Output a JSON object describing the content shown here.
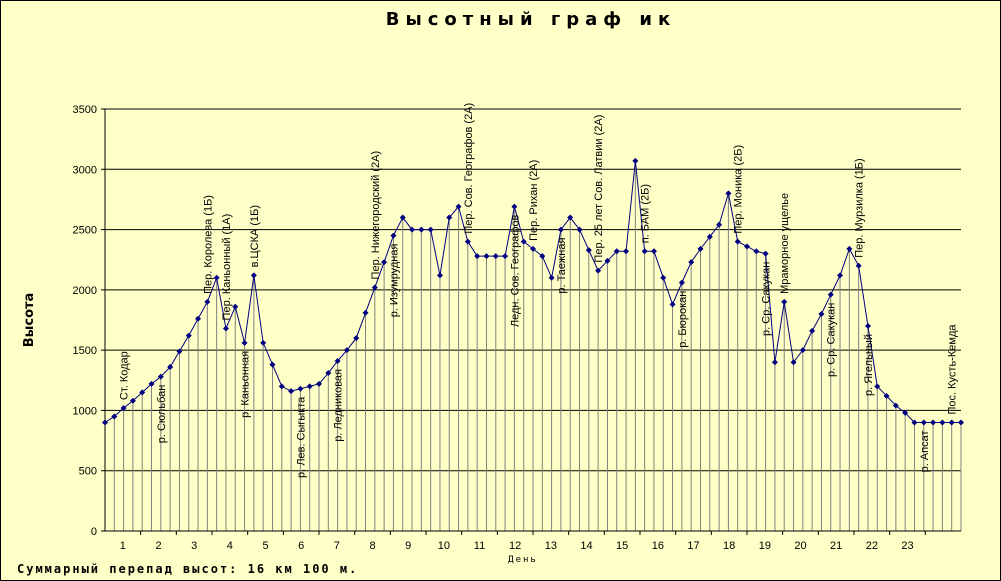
{
  "chart_data": {
    "type": "line",
    "title": "Высотный граф ик",
    "ylabel": "Высота",
    "xlabel": "День",
    "footer": "Суммарный перепад высот: 16 км 100 м.",
    "ylim": [
      0,
      3500
    ],
    "y_ticks": [
      0,
      500,
      1000,
      1500,
      2000,
      2500,
      3000,
      3500
    ],
    "x_ticks": [
      "1",
      "2",
      "3",
      "4",
      "5",
      "6",
      "7",
      "8",
      "9",
      "10",
      "11",
      "12",
      "13",
      "14",
      "15",
      "16",
      "17",
      "18",
      "19",
      "20",
      "21",
      "22",
      "23"
    ],
    "grid": "horizontal",
    "legend": "none",
    "colors": {
      "line": "#000080",
      "marker": "#000080",
      "grid": "#000000",
      "drops": "#808080",
      "background": "#FFFFC8"
    },
    "values": [
      900,
      950,
      1020,
      1080,
      1150,
      1220,
      1280,
      1360,
      1490,
      1620,
      1760,
      1900,
      2100,
      1680,
      1860,
      1560,
      2120,
      1560,
      1380,
      1200,
      1160,
      1180,
      1200,
      1220,
      1310,
      1410,
      1500,
      1600,
      1810,
      2020,
      2230,
      2450,
      2600,
      2500,
      2500,
      2500,
      2120,
      2600,
      2690,
      2400,
      2280,
      2280,
      2280,
      2280,
      2690,
      2400,
      2340,
      2280,
      2100,
      2500,
      2600,
      2500,
      2330,
      2160,
      2240,
      2320,
      2320,
      3070,
      2320,
      2320,
      2100,
      1880,
      2060,
      2230,
      2340,
      2440,
      2540,
      2800,
      2400,
      2360,
      2320,
      2300,
      1400,
      1900,
      1400,
      1500,
      1660,
      1800,
      1960,
      2120,
      2340,
      2200,
      1700,
      1200,
      1120,
      1040,
      980,
      900,
      900,
      900,
      900,
      900,
      900
    ],
    "annotations": [
      {
        "index": 2,
        "text": "Ст. Кодар",
        "side": "above"
      },
      {
        "index": 6,
        "text": "р. Сюльбан",
        "side": "below"
      },
      {
        "index": 11,
        "text": "Пер. Королева (1Б)",
        "side": "above"
      },
      {
        "index": 13,
        "text": "Пер. Каньонный (1А)",
        "side": "above"
      },
      {
        "index": 15,
        "text": "р. Каньонная",
        "side": "below"
      },
      {
        "index": 16,
        "text": "в.ЦСКА (1Б)",
        "side": "above"
      },
      {
        "index": 21,
        "text": "р. Лев. Сыгыкта",
        "side": "below"
      },
      {
        "index": 25,
        "text": "р. Ледниковая",
        "side": "below"
      },
      {
        "index": 29,
        "text": "Пер. Нижегородский (2А)",
        "side": "above"
      },
      {
        "index": 31,
        "text": "р. Изумрудная",
        "side": "below"
      },
      {
        "index": 39,
        "text": "Пер. Сов. Географов (2А)",
        "side": "above"
      },
      {
        "index": 44,
        "text": "Ледн. Сов. Географов",
        "side": "below"
      },
      {
        "index": 46,
        "text": "Пер. Рихан (2А)",
        "side": "above"
      },
      {
        "index": 49,
        "text": "р. Таежная",
        "side": "below"
      },
      {
        "index": 53,
        "text": "Пер. 25 лет Сов. Латвии (2А)",
        "side": "above"
      },
      {
        "index": 58,
        "text": "п. БАМ (2Б)",
        "side": "above"
      },
      {
        "index": 62,
        "text": "р. Бюрокан",
        "side": "below"
      },
      {
        "index": 68,
        "text": "Пер. Моника (2Б)",
        "side": "above"
      },
      {
        "index": 71,
        "text": "р. Ср. Сакукан",
        "side": "below"
      },
      {
        "index": 73,
        "text": "Мраморное ущелье",
        "side": "above"
      },
      {
        "index": 78,
        "text": "р. Ср. Сакукан",
        "side": "below"
      },
      {
        "index": 81,
        "text": "Пер. Мурзилка (1Б)",
        "side": "above"
      },
      {
        "index": 82,
        "text": "р. Ягельный",
        "side": "below"
      },
      {
        "index": 88,
        "text": "р. Апсат",
        "side": "below"
      },
      {
        "index": 91,
        "text": "Пос. Кусть-Кемда",
        "side": "above"
      }
    ]
  }
}
